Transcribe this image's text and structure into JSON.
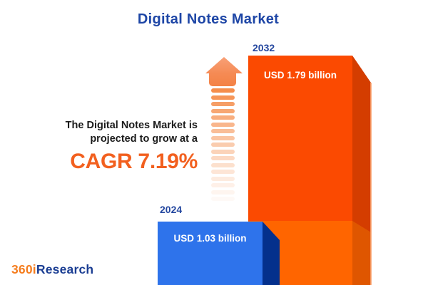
{
  "title": "Digital Notes Market",
  "description": {
    "line1": "The Digital Notes Market is",
    "line2": "projected to grow at a",
    "cagr_text": "CAGR 7.19%"
  },
  "chart_data": {
    "type": "bar",
    "title": "Digital Notes Market",
    "unit": "USD billion",
    "categories": [
      "2024",
      "2032"
    ],
    "values": [
      1.03,
      1.79
    ],
    "value_labels": [
      "USD 1.03 billion",
      "USD 1.79 billion"
    ],
    "cagr_percent": 7.19,
    "annotation": "The Digital Notes Market is projected to grow at a CAGR 7.19%",
    "legend": "none",
    "axes": "none",
    "style": "3d-bars",
    "bar_colors": {
      "bar_2024_front": "#2E73EB",
      "bar_2024_side": "#04308C",
      "bar_2032_front": "#FB4A01",
      "bar_2032_side": "#D43D00",
      "bar_2032_lower_front": "#FF6500",
      "bar_2032_lower_side": "#DF5600"
    }
  },
  "arrow": {
    "icon": "dashed-up-arrow",
    "color_top": "#F58B55",
    "fade_to": "#FFFFFF"
  },
  "logo": {
    "prefix": "360i",
    "suffix": "Research",
    "prefix_color": "#F57E20",
    "suffix_color": "#1B3E93"
  },
  "accent_colors": {
    "title_blue": "#1E46A6",
    "year_label_blue": "#24479F",
    "cagr_orange": "#F2601F"
  }
}
